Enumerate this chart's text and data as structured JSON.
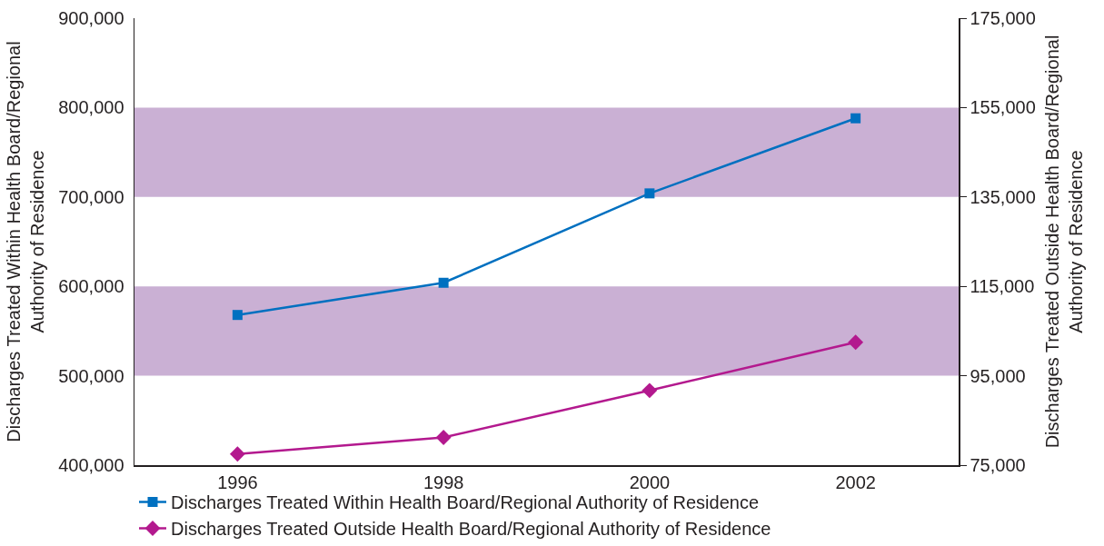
{
  "chart_data": {
    "type": "line",
    "categories": [
      "1996",
      "1998",
      "2000",
      "2002"
    ],
    "ylabel": "Discharges Treated Within Health Board/Regional\nAuthority of Residence",
    "y2label": "Discharges Treated Outside Health Board/Regional\nAuthority of Residence",
    "ylim": [
      400000,
      900000
    ],
    "yticks": [
      {
        "value": 400000,
        "label": "400,000"
      },
      {
        "value": 500000,
        "label": "500,000"
      },
      {
        "value": 600000,
        "label": "600,000"
      },
      {
        "value": 700000,
        "label": "700,000"
      },
      {
        "value": 800000,
        "label": "800,000"
      },
      {
        "value": 900000,
        "label": "900,000"
      }
    ],
    "y2lim": [
      75000,
      175000
    ],
    "y2ticks": [
      {
        "value": 75000,
        "label": "75,000"
      },
      {
        "value": 95000,
        "label": "95,000"
      },
      {
        "value": 115000,
        "label": "115,000"
      },
      {
        "value": 135000,
        "label": "135,000"
      },
      {
        "value": 155000,
        "label": "155,000"
      },
      {
        "value": 175000,
        "label": "175,000"
      }
    ],
    "series": [
      {
        "name": "Discharges Treated Within Health Board/Regional Authority of Residence",
        "color": "#0070c0",
        "marker": "square",
        "values": [
          568000,
          604000,
          704000,
          788000
        ]
      },
      {
        "name": "Discharges Treated Outside Health Board/Regional Authority of Residence",
        "color": "#b3198e",
        "marker": "diamond",
        "axis": "y2",
        "values": [
          77500,
          81200,
          91700,
          102500
        ]
      }
    ],
    "bands": [
      {
        "axis": "y",
        "from": 500000,
        "to": 600000,
        "color": "#cab0d4"
      },
      {
        "axis": "y",
        "from": 700000,
        "to": 800000,
        "color": "#cab0d4"
      }
    ],
    "line_style": "solid",
    "legend": "bottom"
  }
}
